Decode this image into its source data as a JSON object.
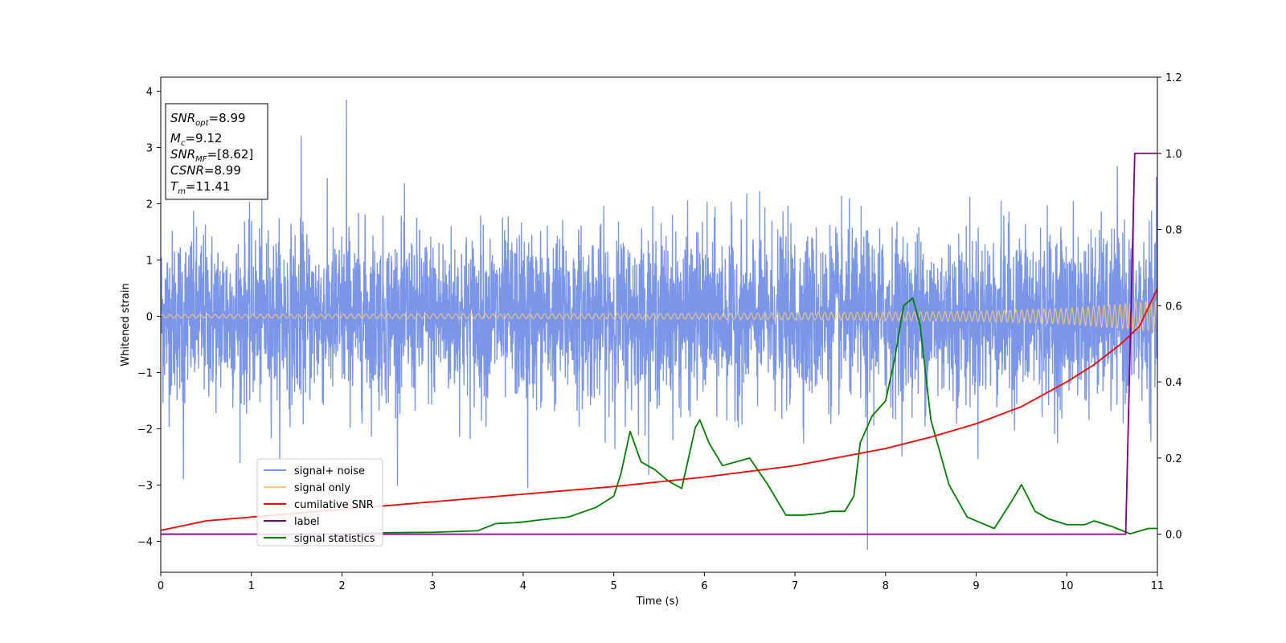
{
  "chart_data": {
    "type": "line",
    "xlabel": "Time (s)",
    "ylabel": "Whitened strain",
    "xlim": [
      0,
      11
    ],
    "ylim_left": [
      -4.55,
      4.25
    ],
    "ylim_right": [
      -0.1,
      1.2
    ],
    "x_ticks": [
      0,
      1,
      2,
      3,
      4,
      5,
      6,
      7,
      8,
      9,
      10,
      11
    ],
    "y_ticks_left": [
      -4,
      -3,
      -2,
      -1,
      0,
      1,
      2,
      3,
      4
    ],
    "y_ticks_right": [
      0.0,
      0.2,
      0.4,
      0.6,
      0.8,
      1.0,
      1.2
    ],
    "grid": false,
    "legend_placement": "lower-left",
    "annotation": {
      "lines": [
        {
          "base": "SNR",
          "sub": "opt",
          "value": "=8.99"
        },
        {
          "base": "M",
          "sub": "c",
          "value": "=9.12"
        },
        {
          "base": "SNR",
          "sub": "MF",
          "value": "=[8.62]"
        },
        {
          "base": "CSNR",
          "sub": "",
          "value": "=8.99"
        },
        {
          "base": "T",
          "sub": "m",
          "value": "=11.41"
        }
      ]
    },
    "series": [
      {
        "name": "signal+ noise",
        "axis": "left",
        "color": "#7b96e8",
        "kind": "noise",
        "envelope_std": 0.75,
        "x_range": [
          0,
          11
        ],
        "notable_spikes": [
          [
            2.05,
            3.85
          ],
          [
            7.8,
            -4.15
          ],
          [
            1.55,
            3.2
          ],
          [
            4.05,
            -3.05
          ],
          [
            0.25,
            -2.9
          ]
        ]
      },
      {
        "name": "signal only",
        "axis": "left",
        "color": "#f5c87a",
        "kind": "chirp",
        "x_range": [
          0,
          11
        ],
        "amplitude_at": [
          [
            0,
            0.03
          ],
          [
            6,
            0.05
          ],
          [
            9,
            0.09
          ],
          [
            10,
            0.14
          ],
          [
            11,
            0.27
          ]
        ]
      },
      {
        "name": "cumilative SNR",
        "axis": "right",
        "color": "#ff0000",
        "x": [
          0,
          0.5,
          1,
          2,
          3,
          4,
          5,
          6,
          7,
          8,
          8.5,
          9,
          9.5,
          10,
          10.3,
          10.6,
          10.8,
          11
        ],
        "y": [
          0.01,
          0.035,
          0.045,
          0.065,
          0.085,
          0.105,
          0.125,
          0.15,
          0.18,
          0.225,
          0.255,
          0.29,
          0.335,
          0.4,
          0.445,
          0.5,
          0.545,
          0.645
        ]
      },
      {
        "name": "label",
        "axis": "right",
        "color": "#800080",
        "x": [
          0,
          10.65,
          10.75,
          11
        ],
        "y": [
          0,
          0,
          1,
          1
        ]
      },
      {
        "name": "signal statistics",
        "axis": "right",
        "color": "#008000",
        "x": [
          0,
          1,
          2,
          2.5,
          3,
          3.5,
          3.7,
          3.9,
          4,
          4.2,
          4.5,
          4.8,
          5,
          5.08,
          5.18,
          5.3,
          5.45,
          5.6,
          5.75,
          5.9,
          5.95,
          6.05,
          6.2,
          6.35,
          6.5,
          6.7,
          6.9,
          7.1,
          7.3,
          7.4,
          7.55,
          7.65,
          7.72,
          7.85,
          8,
          8.1,
          8.2,
          8.3,
          8.38,
          8.5,
          8.7,
          8.9,
          9.2,
          9.4,
          9.5,
          9.65,
          9.8,
          10,
          10.2,
          10.3,
          10.5,
          10.7,
          10.9,
          11
        ],
        "y": [
          0.0,
          0.0,
          0.001,
          0.004,
          0.005,
          0.009,
          0.028,
          0.03,
          0.032,
          0.038,
          0.045,
          0.07,
          0.1,
          0.16,
          0.27,
          0.19,
          0.17,
          0.14,
          0.12,
          0.28,
          0.3,
          0.24,
          0.18,
          0.19,
          0.2,
          0.13,
          0.05,
          0.05,
          0.055,
          0.06,
          0.06,
          0.1,
          0.24,
          0.31,
          0.35,
          0.46,
          0.6,
          0.62,
          0.55,
          0.3,
          0.13,
          0.045,
          0.015,
          0.09,
          0.13,
          0.06,
          0.04,
          0.025,
          0.025,
          0.035,
          0.02,
          0.001,
          0.015,
          0.015
        ]
      }
    ]
  }
}
